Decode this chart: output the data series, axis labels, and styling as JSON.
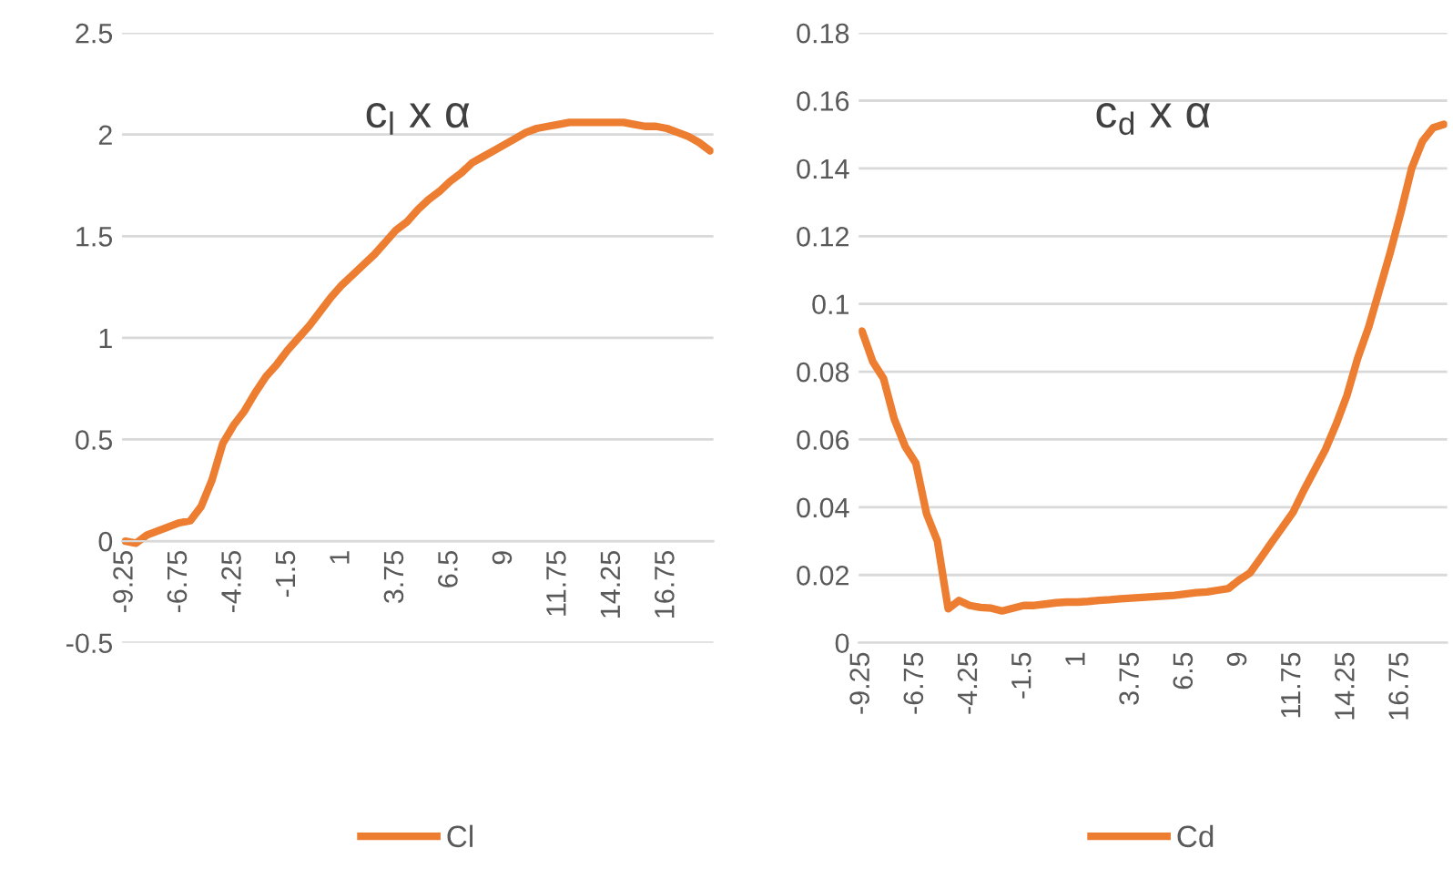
{
  "chart_data": [
    {
      "type": "line",
      "title": "c$_{l}$ x α",
      "categories": [
        "-9.25",
        null,
        null,
        null,
        null,
        "-6.75",
        null,
        null,
        null,
        null,
        "-4.25",
        null,
        null,
        null,
        null,
        "-1.5",
        null,
        null,
        null,
        null,
        "1",
        null,
        null,
        null,
        null,
        "3.75",
        null,
        null,
        null,
        null,
        "6.5",
        null,
        null,
        null,
        null,
        "9",
        null,
        null,
        null,
        null,
        "11.75",
        null,
        null,
        null,
        null,
        "14.25",
        null,
        null,
        null,
        null,
        "16.75",
        null,
        null,
        null,
        null
      ],
      "series": [
        {
          "name": "Cl",
          "color": "#ed7d31",
          "values": [
            0,
            -0.01,
            0.03,
            0.05,
            0.07,
            0.09,
            0.1,
            0.17,
            0.3,
            0.48,
            0.57,
            0.64,
            0.73,
            0.81,
            0.87,
            0.94,
            1.0,
            1.06,
            1.13,
            1.2,
            1.26,
            1.31,
            1.36,
            1.41,
            1.47,
            1.53,
            1.57,
            1.63,
            1.68,
            1.72,
            1.77,
            1.81,
            1.86,
            1.89,
            1.92,
            1.95,
            1.98,
            2.01,
            2.03,
            2.04,
            2.05,
            2.06,
            2.06,
            2.06,
            2.06,
            2.06,
            2.06,
            2.05,
            2.04,
            2.04,
            2.03,
            2.01,
            1.99,
            1.96,
            1.92
          ]
        }
      ],
      "ylim": [
        -0.5,
        2.5
      ],
      "yticks": [
        -0.5,
        0,
        0.5,
        1,
        1.5,
        2,
        2.5
      ],
      "grid": "y",
      "legend": "bottom"
    },
    {
      "type": "line",
      "title": "c$_{d}$ x α",
      "categories": [
        "-9.25",
        null,
        null,
        null,
        null,
        "-6.75",
        null,
        null,
        null,
        null,
        "-4.25",
        null,
        null,
        null,
        null,
        "-1.5",
        null,
        null,
        null,
        null,
        "1",
        null,
        null,
        null,
        null,
        "3.75",
        null,
        null,
        null,
        null,
        "6.5",
        null,
        null,
        null,
        null,
        "9",
        null,
        null,
        null,
        null,
        "11.75",
        null,
        null,
        null,
        null,
        "14.25",
        null,
        null,
        null,
        null,
        "16.75",
        null,
        null,
        null,
        null
      ],
      "series": [
        {
          "name": "Cd",
          "color": "#ed7d31",
          "values": [
            0.092,
            0.083,
            0.078,
            0.066,
            0.058,
            0.053,
            0.038,
            0.03,
            0.01,
            0.0125,
            0.011,
            0.0104,
            0.0102,
            0.0094,
            0.0102,
            0.011,
            0.011,
            0.0114,
            0.0118,
            0.012,
            0.012,
            0.0122,
            0.0125,
            0.0127,
            0.013,
            0.0132,
            0.0134,
            0.0136,
            0.0138,
            0.014,
            0.0144,
            0.0148,
            0.015,
            0.0155,
            0.016,
            0.0185,
            0.0206,
            0.025,
            0.0296,
            0.034,
            0.0385,
            0.045,
            0.051,
            0.057,
            0.0645,
            0.073,
            0.084,
            0.093,
            0.104,
            0.115,
            0.127,
            0.14,
            0.148,
            0.152,
            0.153
          ]
        }
      ],
      "ylim": [
        0,
        0.18
      ],
      "yticks": [
        0,
        0.02,
        0.04,
        0.06,
        0.08,
        0.1,
        0.12,
        0.14,
        0.16,
        0.18
      ],
      "grid": "y",
      "legend": "bottom"
    }
  ]
}
